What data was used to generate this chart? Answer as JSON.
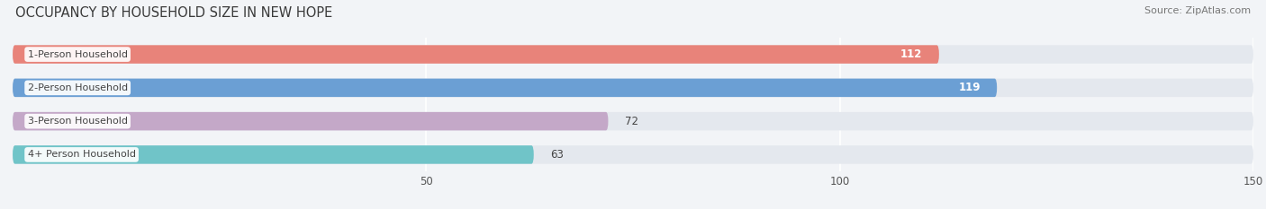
{
  "title": "OCCUPANCY BY HOUSEHOLD SIZE IN NEW HOPE",
  "source": "Source: ZipAtlas.com",
  "categories": [
    "1-Person Household",
    "2-Person Household",
    "3-Person Household",
    "4+ Person Household"
  ],
  "values": [
    112,
    119,
    72,
    63
  ],
  "bar_colors": [
    "#E8837A",
    "#6B9FD4",
    "#C4A8C8",
    "#70C4C8"
  ],
  "label_colors": [
    "white",
    "white",
    "black",
    "black"
  ],
  "xlim": [
    0,
    150
  ],
  "xticks": [
    50,
    100,
    150
  ],
  "background_color": "#f2f4f7",
  "bar_background": "#e4e8ee",
  "title_fontsize": 10.5,
  "source_fontsize": 8,
  "tick_fontsize": 8.5,
  "bar_label_fontsize": 8.5,
  "category_fontsize": 8
}
